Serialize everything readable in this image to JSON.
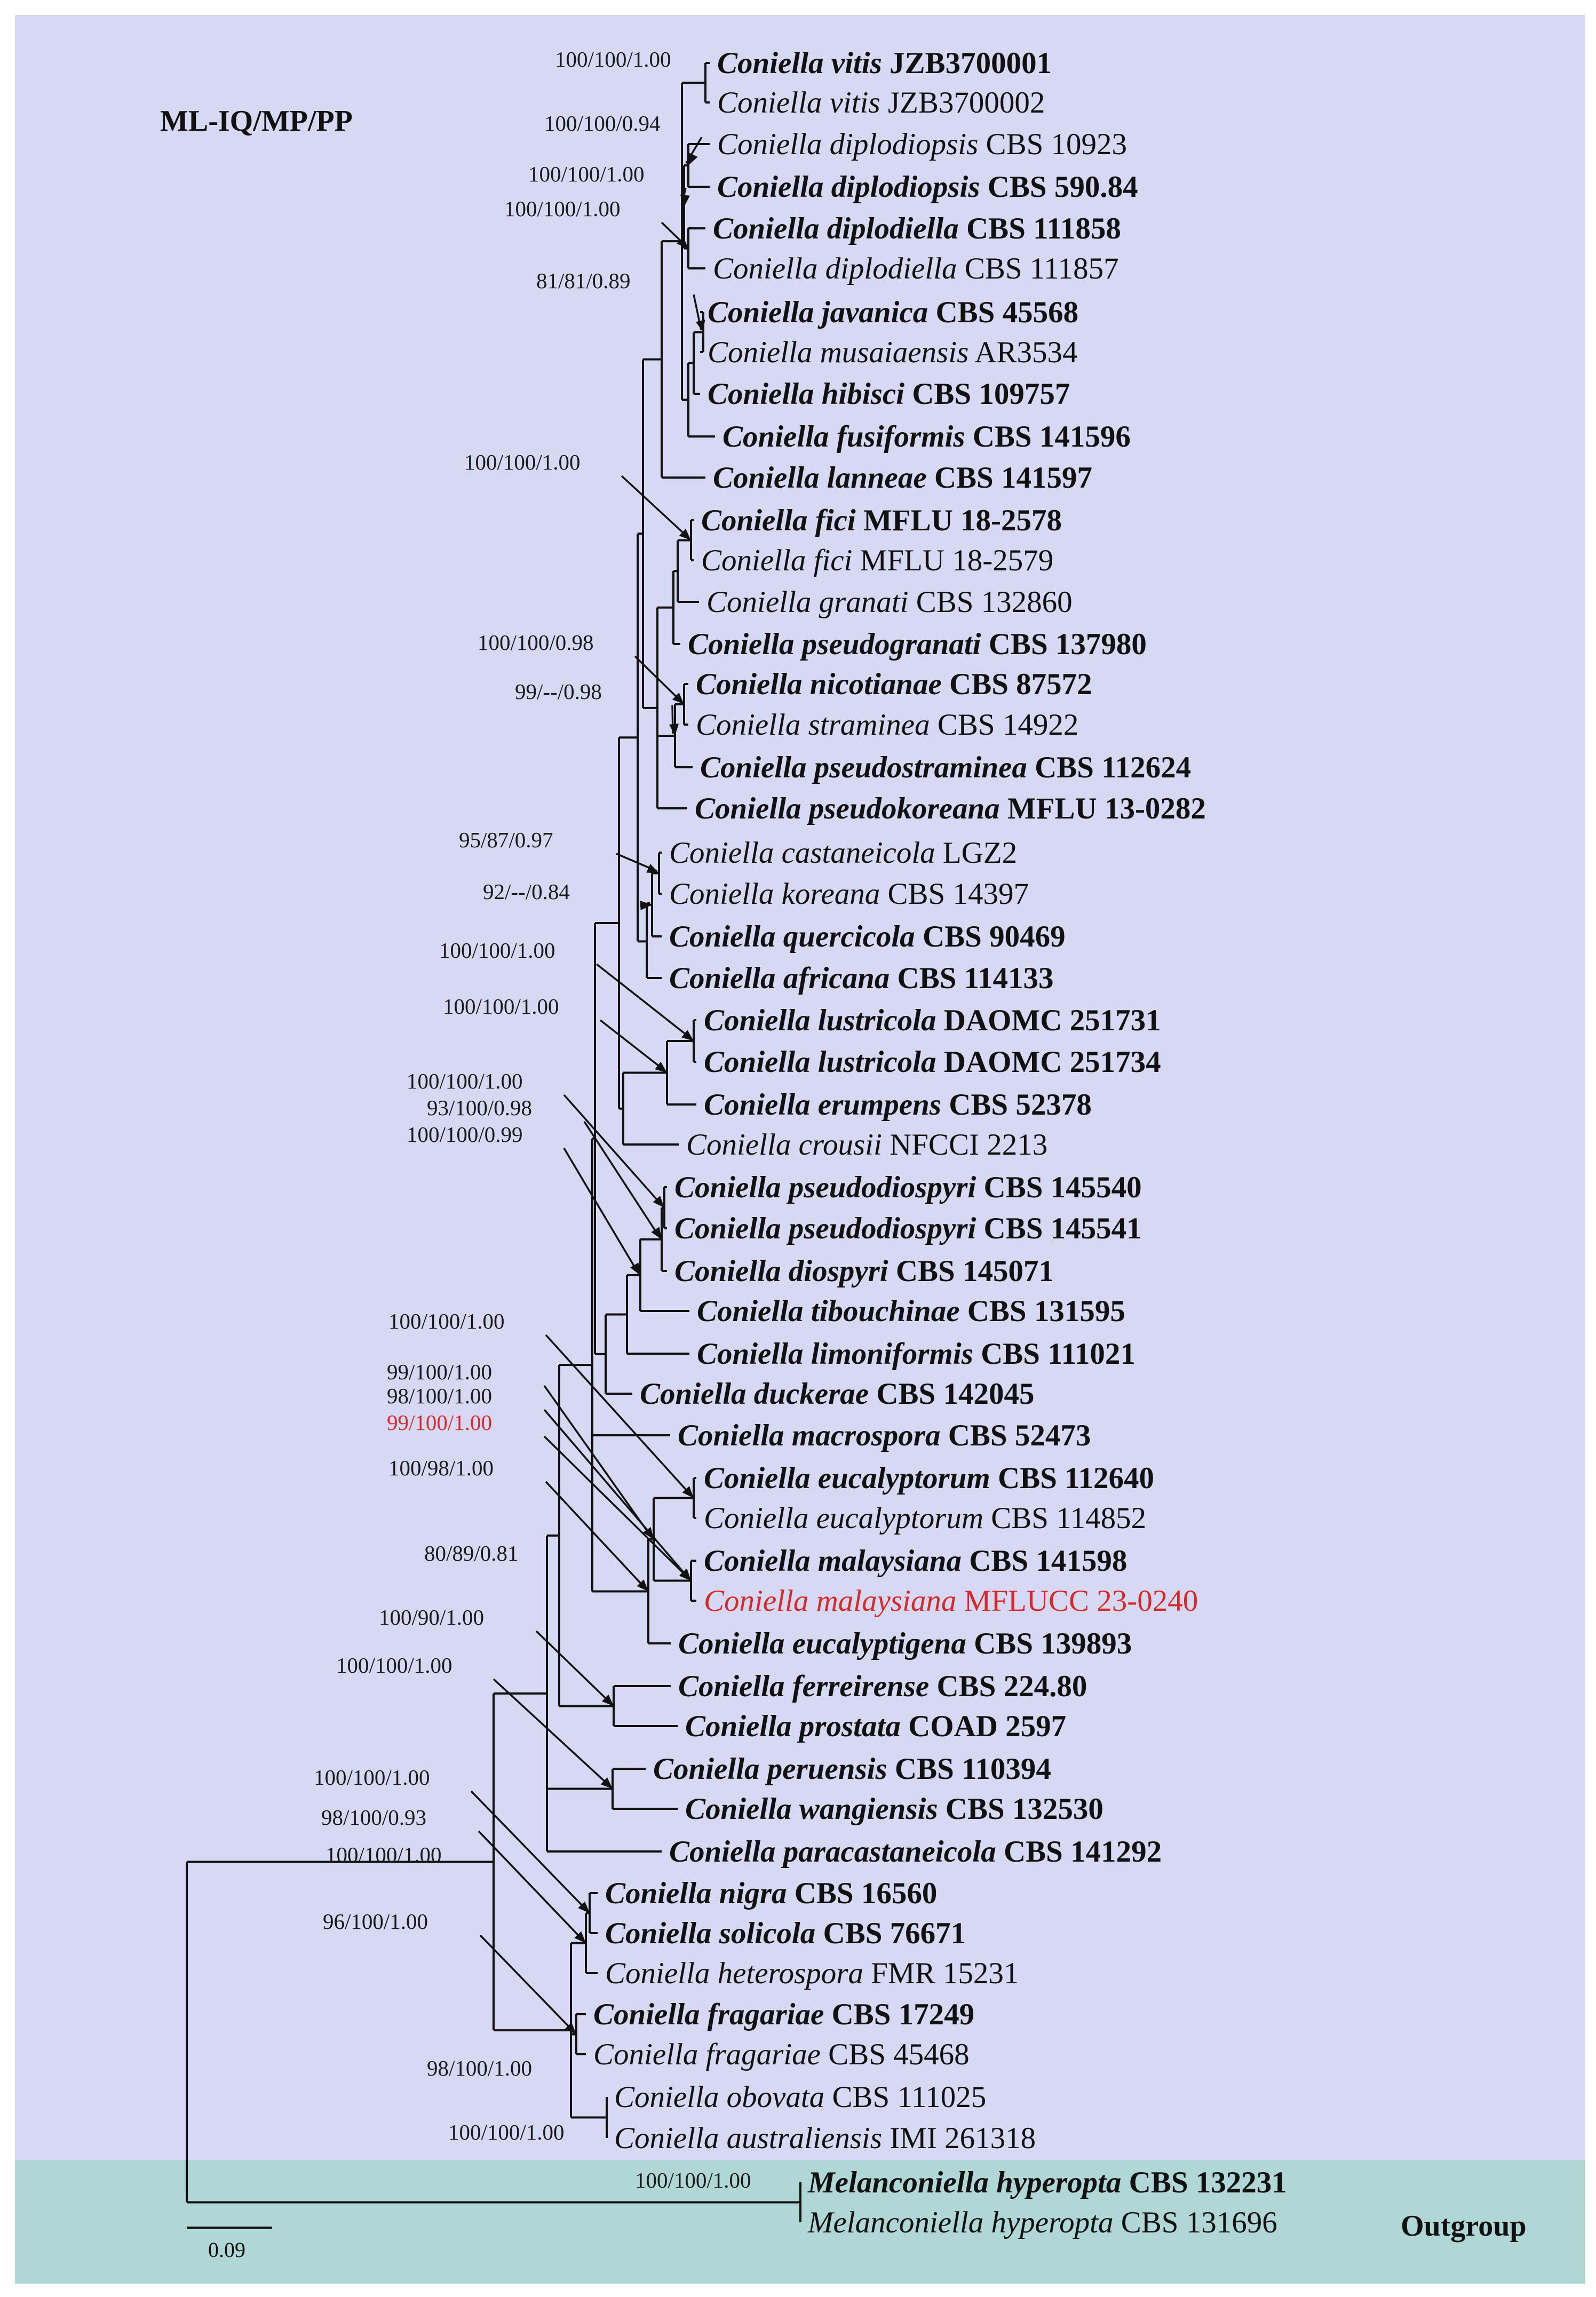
{
  "figure": {
    "method_label": "ML-IQ/MP/PP",
    "outgroup_label": "Outgroup",
    "scale_label": "0.09",
    "colors": {
      "ingroup_bg": "#d7d9f4",
      "outgroup_bg": "#b0d6d5",
      "highlight": "#d42a2a",
      "text": "#111111"
    }
  },
  "taxa": [
    {
      "genus": "Coniella",
      "epithet": "vitis",
      "strain": "JZB3700001",
      "type": true
    },
    {
      "genus": "Coniella",
      "epithet": "vitis",
      "strain": "JZB3700002",
      "type": false
    },
    {
      "genus": "Coniella",
      "epithet": "diplodiopsis",
      "strain": "CBS 10923",
      "type": false
    },
    {
      "genus": "Coniella",
      "epithet": "diplodiopsis",
      "strain": "CBS 590.84",
      "type": true
    },
    {
      "genus": "Coniella",
      "epithet": "diplodiella",
      "strain": "CBS 111858",
      "type": true
    },
    {
      "genus": "Coniella",
      "epithet": "diplodiella",
      "strain": "CBS 111857",
      "type": false
    },
    {
      "genus": "Coniella",
      "epithet": "javanica",
      "strain": "CBS 45568",
      "type": true
    },
    {
      "genus": "Coniella",
      "epithet": "musaiaensis",
      "strain": "AR3534",
      "type": false
    },
    {
      "genus": "Coniella",
      "epithet": "hibisci",
      "strain": "CBS 109757",
      "type": true
    },
    {
      "genus": "Coniella",
      "epithet": "fusiformis",
      "strain": "CBS 141596",
      "type": true
    },
    {
      "genus": "Coniella",
      "epithet": "lanneae",
      "strain": "CBS 141597",
      "type": true
    },
    {
      "genus": "Coniella",
      "epithet": "fici",
      "strain": "MFLU 18-2578",
      "type": true
    },
    {
      "genus": "Coniella",
      "epithet": "fici",
      "strain": "MFLU 18-2579",
      "type": false
    },
    {
      "genus": "Coniella",
      "epithet": "granati",
      "strain": "CBS 132860",
      "type": false
    },
    {
      "genus": "Coniella",
      "epithet": "pseudogranati",
      "strain": "CBS 137980",
      "type": true
    },
    {
      "genus": "Coniella",
      "epithet": "nicotianae",
      "strain": "CBS 87572",
      "type": true
    },
    {
      "genus": "Coniella",
      "epithet": "straminea",
      "strain": "CBS 14922",
      "type": false
    },
    {
      "genus": "Coniella",
      "epithet": "pseudostraminea",
      "strain": "CBS 112624",
      "type": true
    },
    {
      "genus": "Coniella",
      "epithet": "pseudokoreana",
      "strain": "MFLU 13-0282",
      "type": true
    },
    {
      "genus": "Coniella",
      "epithet": "castaneicola",
      "strain": "LGZ2",
      "type": false
    },
    {
      "genus": "Coniella",
      "epithet": "koreana",
      "strain": "CBS 14397",
      "type": false
    },
    {
      "genus": "Coniella",
      "epithet": "quercicola",
      "strain": "CBS 90469",
      "type": true
    },
    {
      "genus": "Coniella",
      "epithet": "africana",
      "strain": "CBS 114133",
      "type": true
    },
    {
      "genus": "Coniella",
      "epithet": "lustricola",
      "strain": "DAOMC 251731",
      "type": true
    },
    {
      "genus": "Coniella",
      "epithet": "lustricola",
      "strain": "DAOMC 251734",
      "type": true
    },
    {
      "genus": "Coniella",
      "epithet": "erumpens",
      "strain": "CBS 52378",
      "type": true
    },
    {
      "genus": "Coniella",
      "epithet": "crousii",
      "strain": "NFCCI 2213",
      "type": false
    },
    {
      "genus": "Coniella",
      "epithet": "pseudodiospyri",
      "strain": "CBS 145540",
      "type": true
    },
    {
      "genus": "Coniella",
      "epithet": "pseudodiospyri",
      "strain": "CBS 145541",
      "type": true
    },
    {
      "genus": "Coniella",
      "epithet": "diospyri",
      "strain": "CBS 145071",
      "type": true
    },
    {
      "genus": "Coniella",
      "epithet": "tibouchinae",
      "strain": "CBS 131595",
      "type": true
    },
    {
      "genus": "Coniella",
      "epithet": "limoniformis",
      "strain": "CBS 111021",
      "type": true
    },
    {
      "genus": "Coniella",
      "epithet": "duckerae",
      "strain": "CBS 142045",
      "type": true
    },
    {
      "genus": "Coniella",
      "epithet": "macrospora",
      "strain": "CBS 52473",
      "type": true
    },
    {
      "genus": "Coniella",
      "epithet": "eucalyptorum",
      "strain": "CBS 112640",
      "type": true
    },
    {
      "genus": "Coniella",
      "epithet": "eucalyptorum",
      "strain": "CBS 114852",
      "type": false
    },
    {
      "genus": "Coniella",
      "epithet": "malaysiana",
      "strain": "CBS 141598",
      "type": true
    },
    {
      "genus": "Coniella",
      "epithet": "malaysiana",
      "strain": "MFLUCC 23-0240",
      "type": false,
      "highlight": true
    },
    {
      "genus": "Coniella",
      "epithet": "eucalyptigena",
      "strain": "CBS 139893",
      "type": true
    },
    {
      "genus": "Coniella",
      "epithet": "ferreirense",
      "strain": "CBS 224.80",
      "type": true
    },
    {
      "genus": "Coniella",
      "epithet": "prostata",
      "strain": "COAD 2597",
      "type": true
    },
    {
      "genus": "Coniella",
      "epithet": "peruensis",
      "strain": "CBS 110394",
      "type": true
    },
    {
      "genus": "Coniella",
      "epithet": "wangiensis",
      "strain": "CBS 132530",
      "type": true
    },
    {
      "genus": "Coniella",
      "epithet": "paracastaneicola",
      "strain": "CBS 141292",
      "type": true
    },
    {
      "genus": "Coniella",
      "epithet": "nigra",
      "strain": "CBS 16560",
      "type": true
    },
    {
      "genus": "Coniella",
      "epithet": "solicola",
      "strain": "CBS 76671",
      "type": true
    },
    {
      "genus": "Coniella",
      "epithet": "heterospora",
      "strain": "FMR 15231",
      "type": false
    },
    {
      "genus": "Coniella",
      "epithet": "fragariae",
      "strain": "CBS 17249",
      "type": true
    },
    {
      "genus": "Coniella",
      "epithet": "fragariae",
      "strain": "CBS 45468",
      "type": false
    },
    {
      "genus": "Coniella",
      "epithet": "obovata",
      "strain": "CBS 111025",
      "type": false
    },
    {
      "genus": "Coniella",
      "epithet": "australiensis",
      "strain": "IMI 261318",
      "type": false
    },
    {
      "genus": "Melanconiella",
      "epithet": "hyperopta",
      "strain": "CBS 132231",
      "type": true
    },
    {
      "genus": "Melanconiella",
      "epithet": "hyperopta",
      "strain": "CBS 131696",
      "type": false
    }
  ],
  "support_values": [
    {
      "value": "100/100/1.00",
      "node": "vitis",
      "highlight": false
    },
    {
      "value": "100/100/0.94",
      "node": "diplodiopsis",
      "highlight": false
    },
    {
      "value": "100/100/1.00",
      "node": "diplodiopsis-diplodiella",
      "highlight": false
    },
    {
      "value": "100/100/1.00",
      "node": "diplodiella",
      "highlight": false
    },
    {
      "value": "81/81/0.89",
      "node": "javanica-musaiaensis",
      "highlight": false
    },
    {
      "value": "100/100/1.00",
      "node": "fici",
      "highlight": false
    },
    {
      "value": "100/100/0.98",
      "node": "nicotianae-straminea",
      "highlight": false
    },
    {
      "value": "99/--/0.98",
      "node": "nicotianae-pseudostraminea",
      "highlight": false
    },
    {
      "value": "95/87/0.97",
      "node": "castaneicola-koreana",
      "highlight": false
    },
    {
      "value": "92/--/0.84",
      "node": "castaneicola-quercicola",
      "highlight": false
    },
    {
      "value": "100/100/1.00",
      "node": "lustricola",
      "highlight": false
    },
    {
      "value": "100/100/1.00",
      "node": "lustricola-erumpens",
      "highlight": false
    },
    {
      "value": "100/100/1.00",
      "node": "pseudodiospyri",
      "highlight": false
    },
    {
      "value": "93/100/0.98",
      "node": "pseudodiospyri-diospyri",
      "highlight": false
    },
    {
      "value": "100/100/0.99",
      "node": "pseudodiospyri-tibouchinae",
      "highlight": false
    },
    {
      "value": "100/100/1.00",
      "node": "eucalyptorum",
      "highlight": false
    },
    {
      "value": "99/100/1.00",
      "node": "eucalyptorum-malaysiana",
      "highlight": false
    },
    {
      "value": "98/100/1.00",
      "node": "malaysiana",
      "highlight": false
    },
    {
      "value": "99/100/1.00",
      "node": "malaysiana-new",
      "highlight": true
    },
    {
      "value": "100/98/1.00",
      "node": "eucalyptorum-eucalyptigena",
      "highlight": false
    },
    {
      "value": "80/89/0.81",
      "node": "crown-upper",
      "highlight": false
    },
    {
      "value": "100/90/1.00",
      "node": "ferreirense-prostata",
      "highlight": false
    },
    {
      "value": "100/100/1.00",
      "node": "peruensis-wangiensis",
      "highlight": false
    },
    {
      "value": "100/100/1.00",
      "node": "nigra-solicola",
      "highlight": false
    },
    {
      "value": "98/100/0.93",
      "node": "nigra-heterospora",
      "highlight": false
    },
    {
      "value": "100/100/1.00",
      "node": "coniella",
      "highlight": false
    },
    {
      "value": "96/100/1.00",
      "node": "fragariae",
      "highlight": false
    },
    {
      "value": "98/100/1.00",
      "node": "obovata-australiensis-group",
      "highlight": false
    },
    {
      "value": "100/100/1.00",
      "node": "obovata-australiensis",
      "highlight": false
    },
    {
      "value": "100/100/1.00",
      "node": "melanconiella",
      "highlight": false
    }
  ]
}
